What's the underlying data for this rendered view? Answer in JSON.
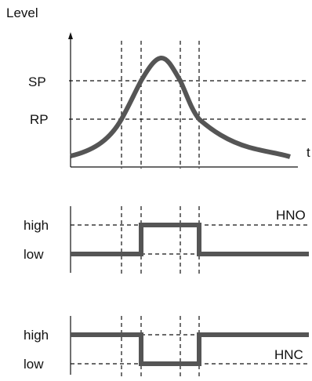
{
  "top_chart": {
    "y_axis_label": "Level",
    "x_axis_label": "t",
    "sp_label": "SP",
    "rp_label": "RP"
  },
  "hno_chart": {
    "high_label": "high",
    "low_label": "low",
    "output_label": "HNO"
  },
  "hnc_chart": {
    "high_label": "high",
    "low_label": "low",
    "output_label": "HNC"
  },
  "colors": {
    "signal": "#555555",
    "lines": "#111111"
  }
}
